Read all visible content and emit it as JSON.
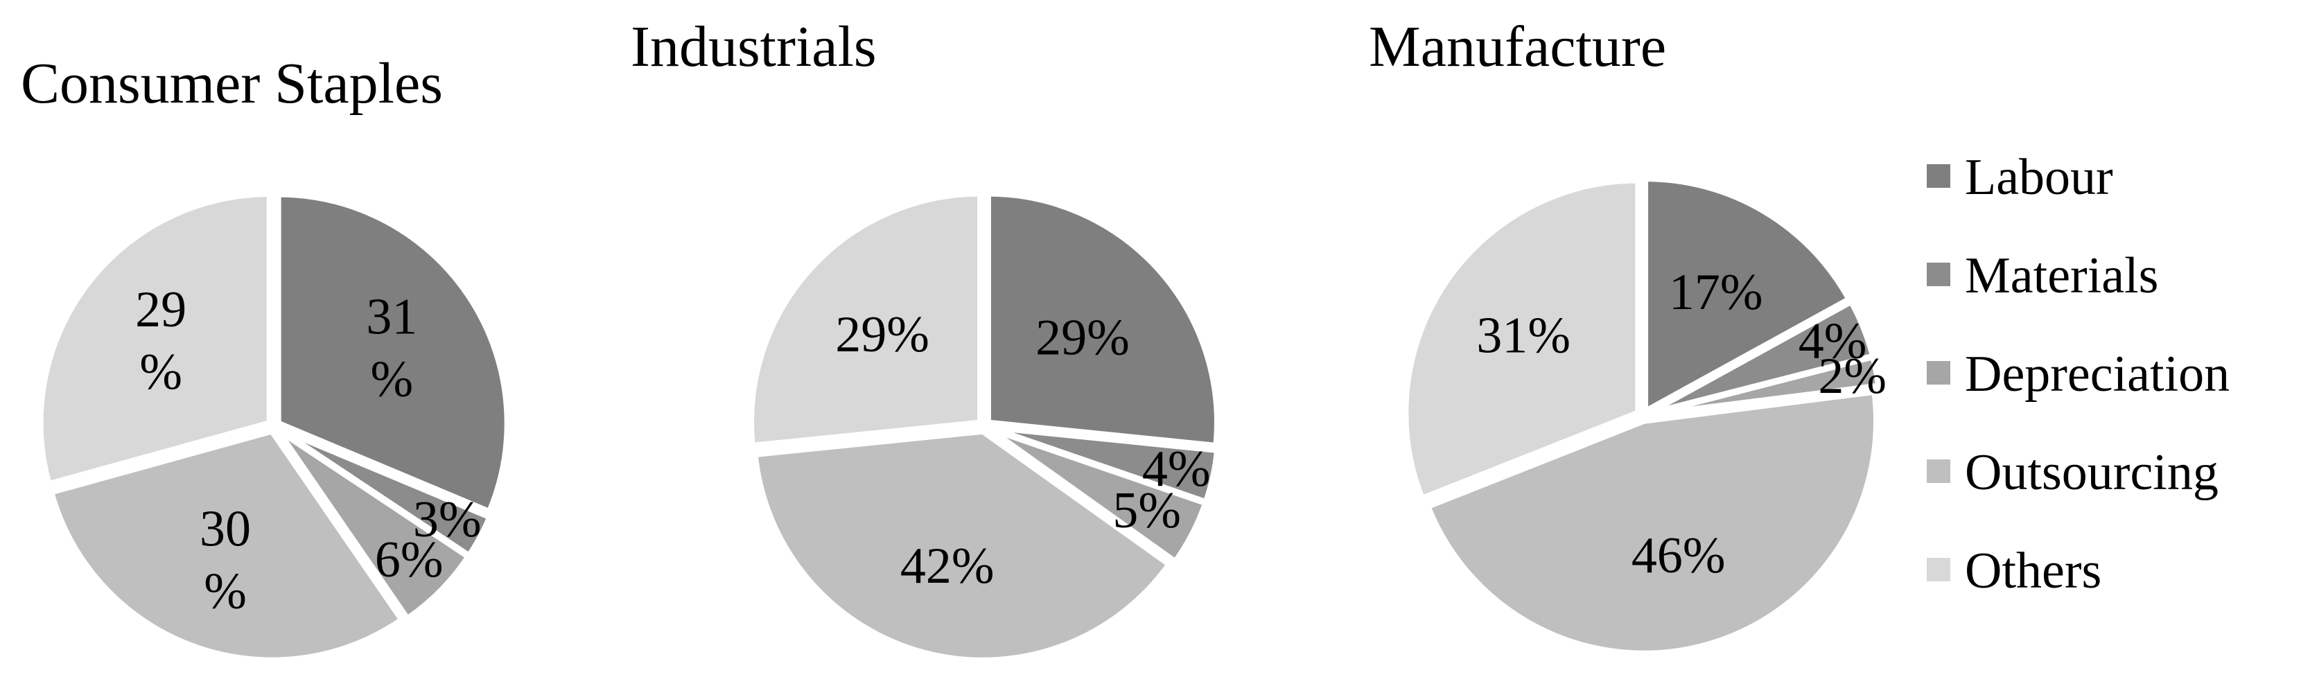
{
  "chart_data": [
    {
      "type": "pie",
      "title": "Consumer Staples",
      "categories": [
        "Labour",
        "Materials",
        "Depreciation",
        "Outsourcing",
        "Others"
      ],
      "values": [
        31,
        3,
        6,
        30,
        29
      ],
      "labels": [
        [
          "31",
          "%"
        ],
        [
          "3%"
        ],
        [
          "6%"
        ],
        [
          "30",
          "%"
        ],
        [
          "29",
          "%"
        ]
      ]
    },
    {
      "type": "pie",
      "title": "Industrials",
      "categories": [
        "Labour",
        "Materials",
        "Depreciation",
        "Outsourcing",
        "Others"
      ],
      "values": [
        29,
        4,
        5,
        42,
        29
      ],
      "labels": [
        [
          "29%"
        ],
        [
          "4%"
        ],
        [
          "5%"
        ],
        [
          "42%"
        ],
        [
          "29%"
        ]
      ]
    },
    {
      "type": "pie",
      "title": "Manufacture",
      "categories": [
        "Labour",
        "Materials",
        "Depreciation",
        "Outsourcing",
        "Others"
      ],
      "values": [
        17,
        4,
        2,
        46,
        31
      ],
      "labels": [
        [
          "17%"
        ],
        [
          "4%"
        ],
        [
          "2%"
        ],
        [
          "46%"
        ],
        [
          "31%"
        ]
      ]
    }
  ],
  "legend": {
    "position": "right",
    "items": [
      {
        "label": "Labour",
        "color": "#7f7f7f"
      },
      {
        "label": "Materials",
        "color": "#8c8c8c"
      },
      {
        "label": "Depreciation",
        "color": "#a6a6a6"
      },
      {
        "label": "Outsourcing",
        "color": "#bfbfbf"
      },
      {
        "label": "Others",
        "color": "#d8d8d8"
      }
    ]
  },
  "colors": [
    "#7f7f7f",
    "#8c8c8c",
    "#a6a6a6",
    "#bfbfbf",
    "#d8d8d8"
  ]
}
